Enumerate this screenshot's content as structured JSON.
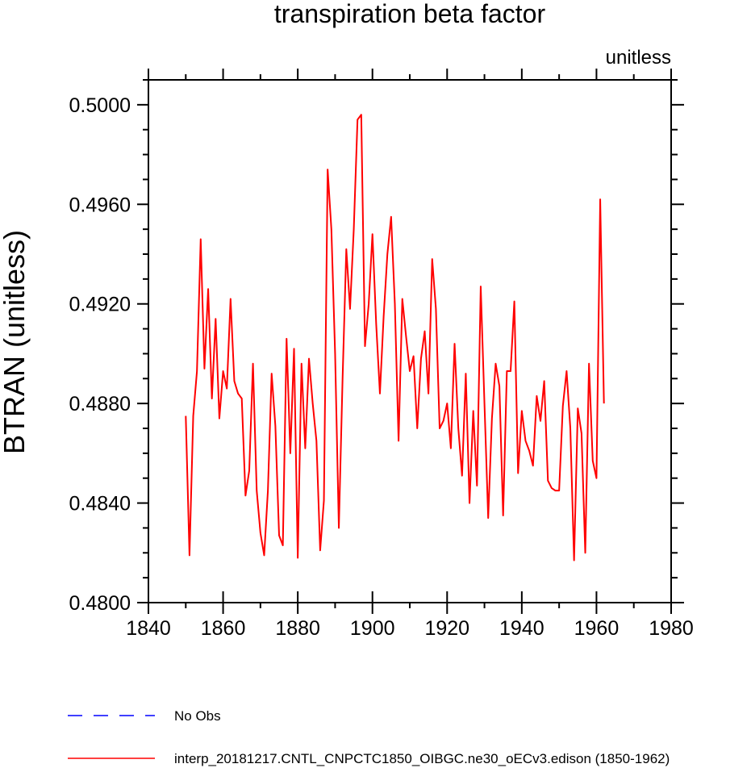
{
  "chart_data": {
    "type": "line",
    "title": "transpiration beta factor",
    "units_label": "unitless",
    "ylabel": "BTRAN  (unitless)",
    "xlabel": "",
    "xlim": [
      1840,
      1980
    ],
    "ylim": [
      0.48,
      0.501
    ],
    "x_ticks": [
      1840,
      1860,
      1880,
      1900,
      1920,
      1940,
      1960,
      1980
    ],
    "x_tick_labels": [
      "1840",
      "1860",
      "1880",
      "1900",
      "1920",
      "1940",
      "1960",
      "1980"
    ],
    "y_ticks": [
      0.48,
      0.484,
      0.488,
      0.492,
      0.496,
      0.5
    ],
    "y_tick_labels": [
      "0.4800",
      "0.4840",
      "0.4880",
      "0.4920",
      "0.4960",
      "0.5000"
    ],
    "legend": [
      {
        "label": "No Obs",
        "color": "#0000ff",
        "style": "dashed"
      },
      {
        "label": "interp_20181217.CNTL_CNPCTC1850_OIBGC.ne30_oECv3.edison (1850-1962)",
        "color": "#ff0000",
        "style": "solid"
      }
    ],
    "series": [
      {
        "name": "interp_20181217.CNTL_CNPCTC1850_OIBGC.ne30_oECv3.edison (1850-1962)",
        "color": "#ff0000",
        "x": [
          1850,
          1851,
          1852,
          1853,
          1854,
          1855,
          1856,
          1857,
          1858,
          1859,
          1860,
          1861,
          1862,
          1863,
          1864,
          1865,
          1866,
          1867,
          1868,
          1869,
          1870,
          1871,
          1872,
          1873,
          1874,
          1875,
          1876,
          1877,
          1878,
          1879,
          1880,
          1881,
          1882,
          1883,
          1884,
          1885,
          1886,
          1887,
          1888,
          1889,
          1890,
          1891,
          1892,
          1893,
          1894,
          1895,
          1896,
          1897,
          1898,
          1899,
          1900,
          1901,
          1902,
          1903,
          1904,
          1905,
          1906,
          1907,
          1908,
          1909,
          1910,
          1911,
          1912,
          1913,
          1914,
          1915,
          1916,
          1917,
          1918,
          1919,
          1920,
          1921,
          1922,
          1923,
          1924,
          1925,
          1926,
          1927,
          1928,
          1929,
          1930,
          1931,
          1932,
          1933,
          1934,
          1935,
          1936,
          1937,
          1938,
          1939,
          1940,
          1941,
          1942,
          1943,
          1944,
          1945,
          1946,
          1947,
          1948,
          1949,
          1950,
          1951,
          1952,
          1953,
          1954,
          1955,
          1956,
          1957,
          1958,
          1959,
          1960,
          1961,
          1962
        ],
        "values": [
          0.4875,
          0.4819,
          0.4875,
          0.4893,
          0.4946,
          0.4894,
          0.4926,
          0.4882,
          0.4914,
          0.4874,
          0.4893,
          0.4886,
          0.4922,
          0.4889,
          0.4884,
          0.4882,
          0.4843,
          0.4853,
          0.4896,
          0.4845,
          0.4828,
          0.4819,
          0.4845,
          0.4892,
          0.4871,
          0.4827,
          0.4823,
          0.4906,
          0.486,
          0.4902,
          0.4818,
          0.4896,
          0.4862,
          0.4898,
          0.488,
          0.4865,
          0.4821,
          0.4841,
          0.4974,
          0.495,
          0.49,
          0.483,
          0.489,
          0.4942,
          0.4918,
          0.495,
          0.4994,
          0.4996,
          0.4903,
          0.492,
          0.4948,
          0.4912,
          0.4884,
          0.4915,
          0.494,
          0.4955,
          0.492,
          0.4865,
          0.4922,
          0.4907,
          0.4893,
          0.4899,
          0.487,
          0.4898,
          0.4909,
          0.4884,
          0.4938,
          0.4918,
          0.487,
          0.4873,
          0.488,
          0.4862,
          0.4904,
          0.487,
          0.4851,
          0.4892,
          0.484,
          0.4877,
          0.4847,
          0.4927,
          0.488,
          0.4834,
          0.4874,
          0.4896,
          0.4887,
          0.4835,
          0.4893,
          0.4893,
          0.4921,
          0.4852,
          0.4877,
          0.4865,
          0.4861,
          0.4855,
          0.4883,
          0.4873,
          0.4889,
          0.4849,
          0.4846,
          0.4845,
          0.4845,
          0.4879,
          0.4893,
          0.487,
          0.4817,
          0.4878,
          0.4868,
          0.482,
          0.4896,
          0.4857,
          0.485,
          0.4962,
          0.488
        ]
      }
    ]
  }
}
